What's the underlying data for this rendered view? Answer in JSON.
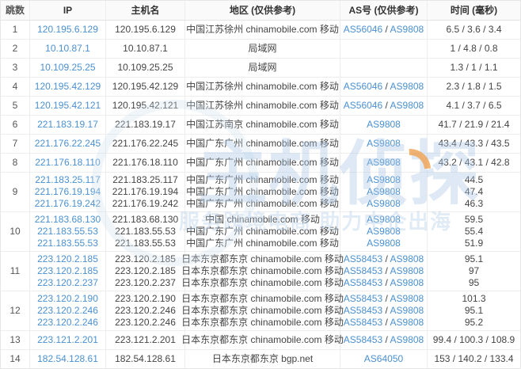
{
  "colors": {
    "link_blue": "#4a90d2",
    "header_bg": "#fafafa",
    "border": "#ededed",
    "watermark_blue": "#a9c8e6",
    "watermark_orange": "#f0a14f"
  },
  "watermark": {
    "brand": "主机侦探",
    "slogan": "服务跨境电商 助力中企出海"
  },
  "table": {
    "headers": [
      "跳数",
      "IP",
      "主机名",
      "地区 (仅供参考)",
      "AS号 (仅供参考)",
      "时间 (毫秒)"
    ],
    "rows": [
      {
        "hop": "1",
        "lines": [
          {
            "ip": "120.195.6.129",
            "host": "120.195.6.129",
            "region": "中国江苏徐州 chinamobile.com 移动",
            "as": [
              "AS56046",
              "AS9808"
            ],
            "time": "6.5 / 3.6 / 3.4"
          }
        ]
      },
      {
        "hop": "2",
        "lines": [
          {
            "ip": "10.10.87.1",
            "host": "10.10.87.1",
            "region": "局域网",
            "as": [],
            "time": "1 / 4.8 / 0.8"
          }
        ]
      },
      {
        "hop": "3",
        "lines": [
          {
            "ip": "10.109.25.25",
            "host": "10.109.25.25",
            "region": "局域网",
            "as": [],
            "time": "1.3 / 1 / 1.1"
          }
        ]
      },
      {
        "hop": "4",
        "lines": [
          {
            "ip": "120.195.42.129",
            "host": "120.195.42.129",
            "region": "中国江苏徐州 chinamobile.com 移动",
            "as": [
              "AS56046",
              "AS9808"
            ],
            "time": "2.3 / 1.8 / 1.5"
          }
        ]
      },
      {
        "hop": "5",
        "lines": [
          {
            "ip": "120.195.42.121",
            "host": "120.195.42.121",
            "region": "中国江苏徐州 chinamobile.com 移动",
            "as": [
              "AS56046",
              "AS9808"
            ],
            "time": "4.1 / 3.7 / 6.5"
          }
        ]
      },
      {
        "hop": "6",
        "lines": [
          {
            "ip": "221.183.19.17",
            "host": "221.183.19.17",
            "region": "中国江苏南京 chinamobile.com 移动",
            "as": [
              "AS9808"
            ],
            "time": "41.7 / 21.9 / 21.4"
          }
        ]
      },
      {
        "hop": "7",
        "lines": [
          {
            "ip": "221.176.22.245",
            "host": "221.176.22.245",
            "region": "中国广东广州 chinamobile.com 移动",
            "as": [
              "AS9808"
            ],
            "time": "43.4 / 43.3 / 43.5"
          }
        ]
      },
      {
        "hop": "8",
        "lines": [
          {
            "ip": "221.176.18.110",
            "host": "221.176.18.110",
            "region": "中国广东广州 chinamobile.com 移动",
            "as": [
              "AS9808"
            ],
            "time": "43.2 / 43.1 / 42.8"
          }
        ]
      },
      {
        "hop": "9",
        "lines": [
          {
            "ip": "221.183.25.117",
            "host": "221.183.25.117",
            "region": "中国广东广州 chinamobile.com 移动",
            "as": [
              "AS9808"
            ],
            "time": "44.5"
          },
          {
            "ip": "221.176.19.194",
            "host": "221.176.19.194",
            "region": "中国广东广州 chinamobile.com 移动",
            "as": [
              "AS9808"
            ],
            "time": "47.4"
          },
          {
            "ip": "221.176.19.242",
            "host": "221.176.19.242",
            "region": "中国广东广州 chinamobile.com 移动",
            "as": [
              "AS9808"
            ],
            "time": "46.3"
          }
        ]
      },
      {
        "hop": "10",
        "lines": [
          {
            "ip": "221.183.68.130",
            "host": "221.183.68.130",
            "region": "中国 chinamobile.com 移动",
            "as": [
              "AS9808"
            ],
            "time": "59.5"
          },
          {
            "ip": "221.183.55.53",
            "host": "221.183.55.53",
            "region": "中国广东广州 chinamobile.com 移动",
            "as": [
              "AS9808"
            ],
            "time": "55.4"
          },
          {
            "ip": "221.183.55.53",
            "host": "221.183.55.53",
            "region": "中国广东广州 chinamobile.com 移动",
            "as": [
              "AS9808"
            ],
            "time": "51.9"
          }
        ]
      },
      {
        "hop": "11",
        "lines": [
          {
            "ip": "223.120.2.185",
            "host": "223.120.2.185",
            "region": "日本东京都东京 chinamobile.com 移动",
            "as": [
              "AS58453",
              "AS9808"
            ],
            "time": "95.1"
          },
          {
            "ip": "223.120.2.185",
            "host": "223.120.2.185",
            "region": "日本东京都东京 chinamobile.com 移动",
            "as": [
              "AS58453",
              "AS9808"
            ],
            "time": "97"
          },
          {
            "ip": "223.120.2.237",
            "host": "223.120.2.237",
            "region": "日本东京都东京 chinamobile.com 移动",
            "as": [
              "AS58453",
              "AS9808"
            ],
            "time": "95"
          }
        ]
      },
      {
        "hop": "12",
        "lines": [
          {
            "ip": "223.120.2.190",
            "host": "223.120.2.190",
            "region": "日本东京都东京 chinamobile.com 移动",
            "as": [
              "AS58453",
              "AS9808"
            ],
            "time": "101.3"
          },
          {
            "ip": "223.120.2.246",
            "host": "223.120.2.246",
            "region": "日本东京都东京 chinamobile.com 移动",
            "as": [
              "AS58453",
              "AS9808"
            ],
            "time": "95.1"
          },
          {
            "ip": "223.120.2.246",
            "host": "223.120.2.246",
            "region": "日本东京都东京 chinamobile.com 移动",
            "as": [
              "AS58453",
              "AS9808"
            ],
            "time": "95.2"
          }
        ]
      },
      {
        "hop": "13",
        "lines": [
          {
            "ip": "223.121.2.201",
            "host": "223.121.2.201",
            "region": "日本东京都东京 chinamobile.com 移动",
            "as": [
              "AS58453",
              "AS9808"
            ],
            "time": "99.4 / 100.3 / 108.9"
          }
        ]
      },
      {
        "hop": "14",
        "lines": [
          {
            "ip": "182.54.128.61",
            "host": "182.54.128.61",
            "region": "日本东京都东京 bgp.net",
            "as": [
              "AS64050"
            ],
            "time": "153 / 140.2 / 133.4"
          }
        ]
      }
    ]
  }
}
